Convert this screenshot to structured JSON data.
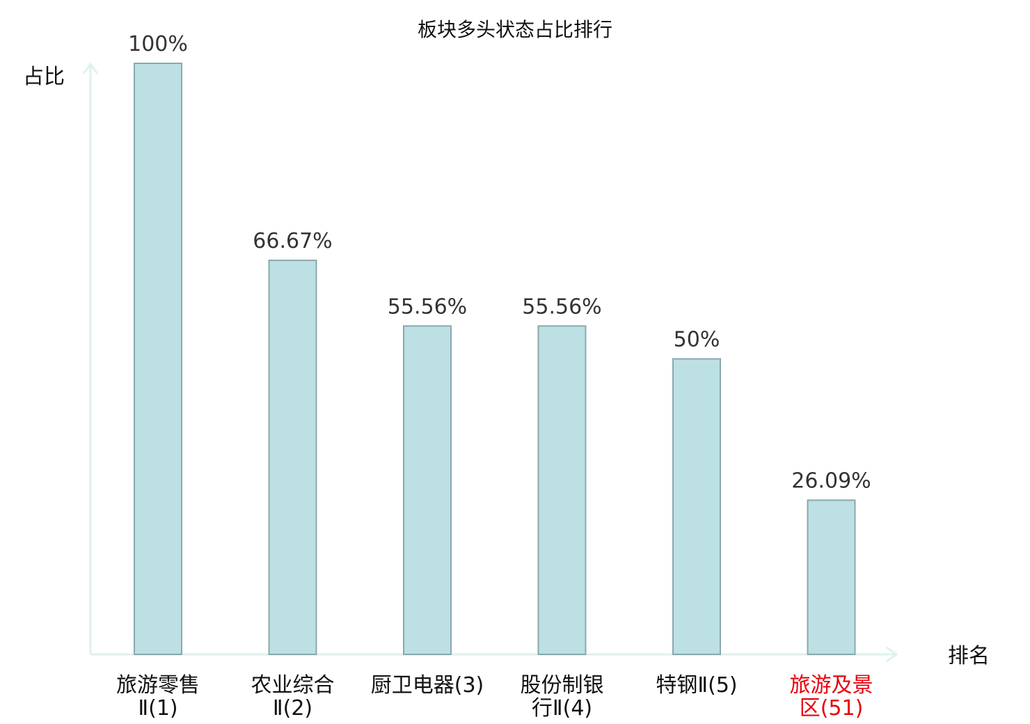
{
  "chart_data": {
    "type": "bar",
    "title": "板块多头状态占比排行",
    "ylabel": "占比",
    "xlabel": "排名",
    "ylim": [
      0,
      100
    ],
    "grid": false,
    "categories": [
      {
        "lines": [
          "旅游零售",
          "Ⅱ(1)"
        ],
        "color": "#111111"
      },
      {
        "lines": [
          "农业综合",
          "Ⅱ(2)"
        ],
        "color": "#111111"
      },
      {
        "lines": [
          "厨卫电器(3)"
        ],
        "color": "#111111"
      },
      {
        "lines": [
          "股份制银",
          "行Ⅱ(4)"
        ],
        "color": "#111111"
      },
      {
        "lines": [
          "特钢Ⅱ(5)"
        ],
        "color": "#111111"
      },
      {
        "lines": [
          "旅游及景",
          "区(51)"
        ],
        "color": "#e8000b"
      }
    ],
    "values": [
      100,
      66.67,
      55.56,
      55.56,
      50,
      26.09
    ],
    "value_labels": [
      "100%",
      "66.67%",
      "55.56%",
      "55.56%",
      "50%",
      "26.09%"
    ],
    "colors": {
      "bar_fill": "#bce0e3",
      "bar_stroke": "#8aa8ac",
      "axis": "#dff1ee",
      "highlight": "#e8000b"
    }
  }
}
